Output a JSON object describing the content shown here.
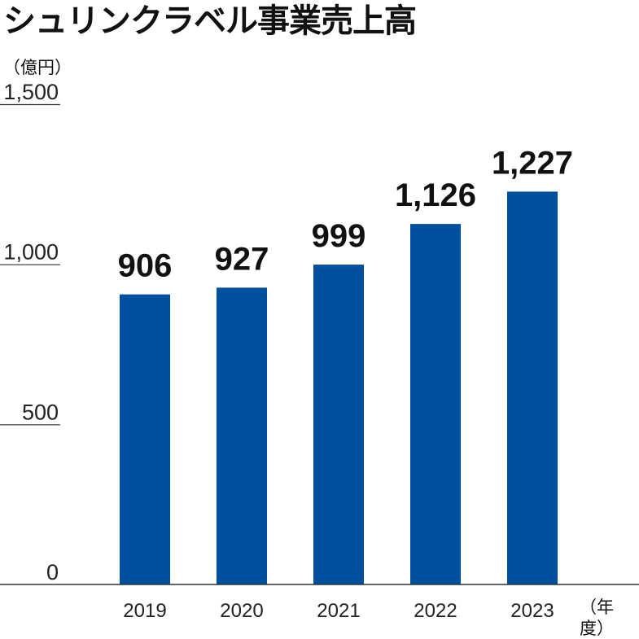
{
  "chart_data": {
    "type": "bar",
    "title": "シュリンクラベル事業売上高",
    "ylabel": "（億円）",
    "xlabel": "（年度）",
    "categories": [
      "2019",
      "2020",
      "2021",
      "2022",
      "2023"
    ],
    "values": [
      906,
      927,
      999,
      1126,
      1227
    ],
    "value_labels": [
      "906",
      "927",
      "999",
      "1,126",
      "1,227"
    ],
    "yticks": [
      0,
      500,
      1000,
      1500
    ],
    "ytick_labels": [
      "0",
      "500",
      "1,000",
      "1,500"
    ],
    "ylim": [
      0,
      1500
    ],
    "bar_color": "#0050a0",
    "grid": false,
    "legend": "none"
  }
}
